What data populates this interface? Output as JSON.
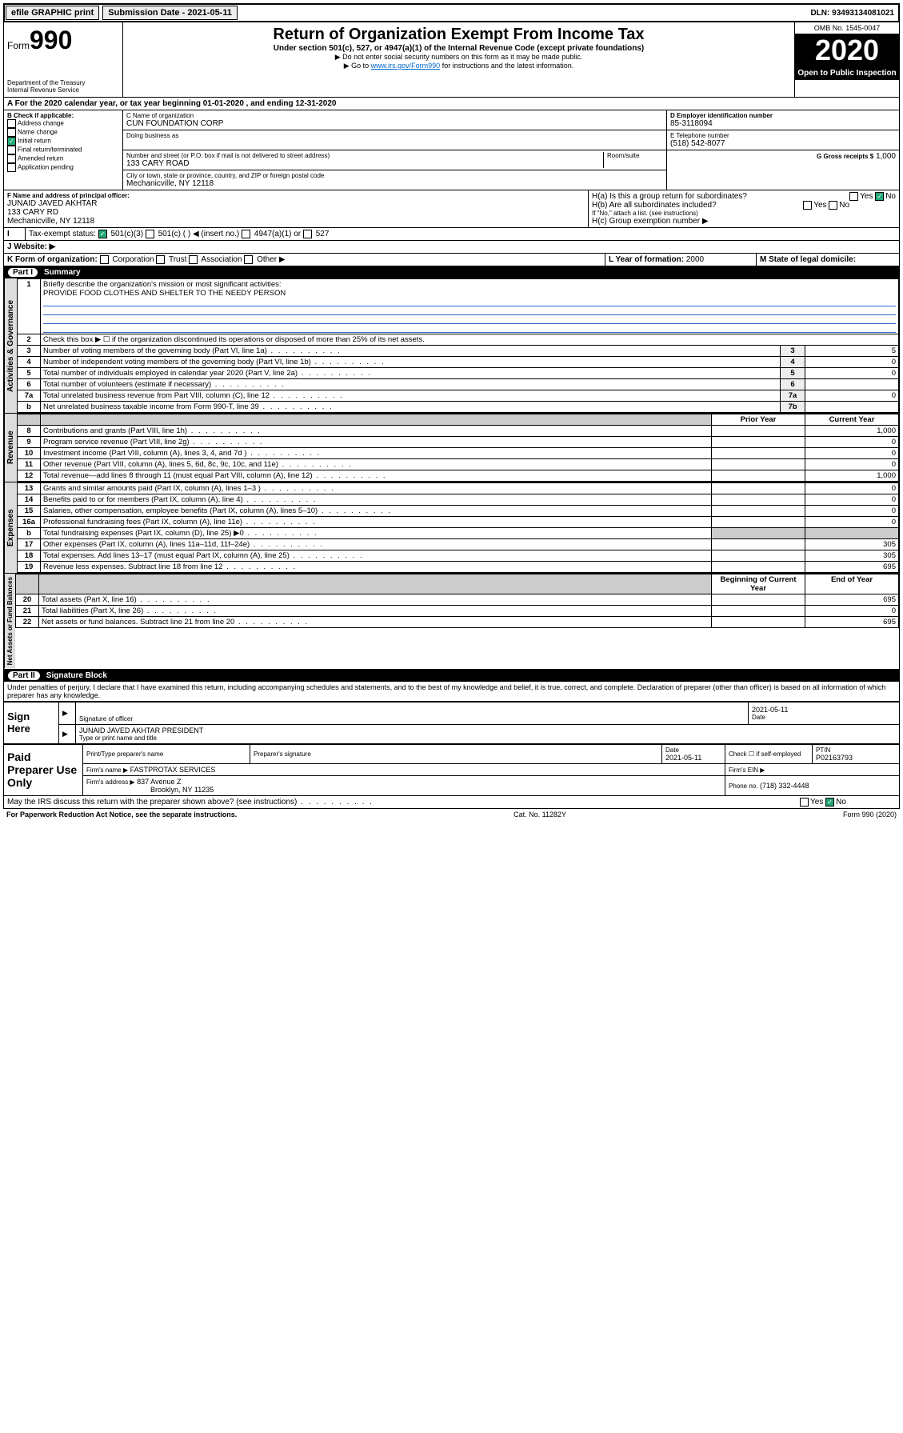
{
  "topbar": {
    "efile": "efile GRAPHIC print",
    "submission": "Submission Date - 2021-05-11",
    "dln": "DLN: 93493134081021"
  },
  "header": {
    "form_label": "Form",
    "form_num": "990",
    "dept": "Department of the Treasury\nInternal Revenue Service",
    "title": "Return of Organization Exempt From Income Tax",
    "sub": "Under section 501(c), 527, or 4947(a)(1) of the Internal Revenue Code (except private foundations)",
    "note1": "▶ Do not enter social security numbers on this form as it may be made public.",
    "note2_pre": "▶ Go to ",
    "note2_link": "www.irs.gov/Form990",
    "note2_post": " for instructions and the latest information.",
    "omb": "OMB No. 1545-0047",
    "year": "2020",
    "open": "Open to Public Inspection"
  },
  "periodA": "For the 2020 calendar year, or tax year beginning 01-01-2020   , and ending 12-31-2020",
  "boxB": {
    "title": "B Check if applicable:",
    "items": [
      "Address change",
      "Name change",
      "Initial return",
      "Final return/terminated",
      "Amended return",
      "Application pending"
    ],
    "checked_idx": 2
  },
  "boxC": {
    "name_label": "C Name of organization",
    "name": "CUN FOUNDATION CORP",
    "dba_label": "Doing business as",
    "addr_label": "Number and street (or P.O. box if mail is not delivered to street address)",
    "room_label": "Room/suite",
    "addr": "133 CARY ROAD",
    "city_label": "City or town, state or province, country, and ZIP or foreign postal code",
    "city": "Mechanicville, NY  12118"
  },
  "boxD": {
    "label": "D Employer identification number",
    "val": "85-3118094"
  },
  "boxE": {
    "label": "E Telephone number",
    "val": "(518) 542-8077"
  },
  "boxG": {
    "label": "G Gross receipts $",
    "val": "1,000"
  },
  "boxF": {
    "label": "F  Name and address of principal officer:",
    "name": "JUNAID JAVED AKHTAR",
    "addr1": "133 CARY RD",
    "addr2": "Mechanicville, NY  12118"
  },
  "boxH": {
    "ha": "H(a)  Is this a group return for subordinates?",
    "hb": "H(b)  Are all subordinates included?",
    "hb_note": "If \"No,\" attach a list. (see instructions)",
    "hc": "H(c)  Group exemption number ▶",
    "yes": "Yes",
    "no": "No"
  },
  "taxexempt": {
    "label": "Tax-exempt status:",
    "opts": [
      "501(c)(3)",
      "501(c) (  ) ◀ (insert no.)",
      "4947(a)(1) or",
      "527"
    ]
  },
  "website": {
    "label": "J   Website: ▶"
  },
  "boxK": {
    "label": "K Form of organization:",
    "opts": [
      "Corporation",
      "Trust",
      "Association",
      "Other ▶"
    ]
  },
  "boxL": {
    "label": "L Year of formation:",
    "val": "2000"
  },
  "boxM": {
    "label": "M State of legal domicile:"
  },
  "part1": {
    "hdr": "Part I",
    "title": "Summary",
    "side_ag": "Activities & Governance",
    "side_rev": "Revenue",
    "side_exp": "Expenses",
    "side_na": "Net Assets or Fund Balances",
    "l1": "Briefly describe the organization's mission or most significant activities:",
    "l1_val": "PROVIDE FOOD CLOTHES AND SHELTER TO THE NEEDY PERSON",
    "l2": "Check this box ▶ ☐  if the organization discontinued its operations or disposed of more than 25% of its net assets.",
    "rows_gov": [
      {
        "n": "3",
        "t": "Number of voting members of the governing body (Part VI, line 1a)",
        "b": "3",
        "v": "5"
      },
      {
        "n": "4",
        "t": "Number of independent voting members of the governing body (Part VI, line 1b)",
        "b": "4",
        "v": "0"
      },
      {
        "n": "5",
        "t": "Total number of individuals employed in calendar year 2020 (Part V, line 2a)",
        "b": "5",
        "v": "0"
      },
      {
        "n": "6",
        "t": "Total number of volunteers (estimate if necessary)",
        "b": "6",
        "v": ""
      },
      {
        "n": "7a",
        "t": "Total unrelated business revenue from Part VIII, column (C), line 12",
        "b": "7a",
        "v": "0"
      },
      {
        "n": "b",
        "t": "Net unrelated business taxable income from Form 990-T, line 39",
        "b": "7b",
        "v": ""
      }
    ],
    "col_prior": "Prior Year",
    "col_curr": "Current Year",
    "rows_rev": [
      {
        "n": "8",
        "t": "Contributions and grants (Part VIII, line 1h)",
        "p": "",
        "c": "1,000"
      },
      {
        "n": "9",
        "t": "Program service revenue (Part VIII, line 2g)",
        "p": "",
        "c": "0"
      },
      {
        "n": "10",
        "t": "Investment income (Part VIII, column (A), lines 3, 4, and 7d )",
        "p": "",
        "c": "0"
      },
      {
        "n": "11",
        "t": "Other revenue (Part VIII, column (A), lines 5, 6d, 8c, 9c, 10c, and 11e)",
        "p": "",
        "c": "0"
      },
      {
        "n": "12",
        "t": "Total revenue—add lines 8 through 11 (must equal Part VIII, column (A), line 12)",
        "p": "",
        "c": "1,000"
      }
    ],
    "rows_exp": [
      {
        "n": "13",
        "t": "Grants and similar amounts paid (Part IX, column (A), lines 1–3 )",
        "p": "",
        "c": "0"
      },
      {
        "n": "14",
        "t": "Benefits paid to or for members (Part IX, column (A), line 4)",
        "p": "",
        "c": "0"
      },
      {
        "n": "15",
        "t": "Salaries, other compensation, employee benefits (Part IX, column (A), lines 5–10)",
        "p": "",
        "c": "0"
      },
      {
        "n": "16a",
        "t": "Professional fundraising fees (Part IX, column (A), line 11e)",
        "p": "",
        "c": "0"
      },
      {
        "n": "b",
        "t": "Total fundraising expenses (Part IX, column (D), line 25) ▶0",
        "p": "shade",
        "c": "shade"
      },
      {
        "n": "17",
        "t": "Other expenses (Part IX, column (A), lines 11a–11d, 11f–24e)",
        "p": "",
        "c": "305"
      },
      {
        "n": "18",
        "t": "Total expenses. Add lines 13–17 (must equal Part IX, column (A), line 25)",
        "p": "",
        "c": "305"
      },
      {
        "n": "19",
        "t": "Revenue less expenses. Subtract line 18 from line 12",
        "p": "",
        "c": "695"
      }
    ],
    "col_beg": "Beginning of Current Year",
    "col_end": "End of Year",
    "rows_na": [
      {
        "n": "20",
        "t": "Total assets (Part X, line 16)",
        "p": "",
        "c": "695"
      },
      {
        "n": "21",
        "t": "Total liabilities (Part X, line 26)",
        "p": "",
        "c": "0"
      },
      {
        "n": "22",
        "t": "Net assets or fund balances. Subtract line 21 from line 20",
        "p": "",
        "c": "695"
      }
    ]
  },
  "part2": {
    "hdr": "Part II",
    "title": "Signature Block",
    "decl": "Under penalties of perjury, I declare that I have examined this return, including accompanying schedules and statements, and to the best of my knowledge and belief, it is true, correct, and complete. Declaration of preparer (other than officer) is based on all information of which preparer has any knowledge.",
    "sign_here": "Sign Here",
    "sig_officer": "Signature of officer",
    "sig_date": "2021-05-11",
    "date_lbl": "Date",
    "officer_name": "JUNAID JAVED AKHTAR  PRESIDENT",
    "type_name": "Type or print name and title",
    "paid": "Paid Preparer Use Only",
    "prep_name_lbl": "Print/Type preparer's name",
    "prep_sig_lbl": "Preparer's signature",
    "prep_date": "2021-05-11",
    "check_self": "Check ☐ if self-employed",
    "ptin_lbl": "PTIN",
    "ptin": "P02163793",
    "firm_name_lbl": "Firm's name    ▶",
    "firm_name": "FASTPROTAX SERVICES",
    "firm_ein_lbl": "Firm's EIN ▶",
    "firm_addr_lbl": "Firm's address ▶",
    "firm_addr": "837 Avenue Z",
    "firm_city": "Brooklyn, NY  11235",
    "firm_phone_lbl": "Phone no.",
    "firm_phone": "(718) 332-4448",
    "discuss": "May the IRS discuss this return with the preparer shown above? (see instructions)"
  },
  "footer": {
    "left": "For Paperwork Reduction Act Notice, see the separate instructions.",
    "mid": "Cat. No. 11282Y",
    "right": "Form 990 (2020)"
  }
}
